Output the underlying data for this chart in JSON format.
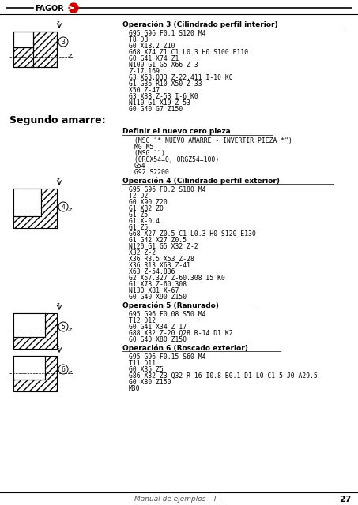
{
  "bg_color": "#ffffff",
  "fagor_text": "FAGOR",
  "fagor_color": "#cc0000",
  "footer_text": "Manual de ejemplos - T -",
  "footer_page": "27",
  "title_op3": "Operación 3 (Cilindrado perfil interior)",
  "code_op3": [
    "G95 G96 F0.1 S120 M4",
    "T8 D8",
    "G0 X18.2 Z10",
    "G68 X74 Z1 C1 L0.3 H0 S100 E110",
    "G0 G41 X74 Z1",
    "N100 G1 G5 X66 Z-3",
    "Z-17.169",
    "G3 X63.033 Z-22.411 I-10 K0",
    "G1 G36 R10 X50 Z-33",
    "X50 Z-47",
    "G3 X38 Z-53 I-6 K0",
    "N110 G1 X19 Z-53",
    "G0 G40 G7 Z150"
  ],
  "segundo_amarre": "Segundo amarre:",
  "title_nuevo_cero": "Definir el nuevo cero pieza",
  "code_nuevo_cero": [
    "(MSG \"* NUEVO AMARRE - INVERTIR PIEZA *\")",
    "M0 M5",
    "(MSG \"\")",
    "(ORGX54=0, ORGZ54=100)",
    "G54",
    "G92 S2200"
  ],
  "title_op4": "Operación 4 (Cilindrado perfil exterior)",
  "code_op4": [
    "G95 G96 F0.2 S180 M4",
    "T2 D2",
    "G0 X90 Z20",
    "G1 X82 Z0",
    "G1 Z5",
    "G1 X-0.4",
    "G1 Z5",
    "G68 X27 Z0.5 C1 L0.3 H0 S120 E130",
    "G1 G42 X27 Z0.5",
    "N120 G1 G5 X32 Z-2",
    "X32 Z-2",
    "X36 R3.5 X53 Z-28",
    "X36 R13 X63 Z-41",
    "X63 Z-54.836",
    "G2 X57.327 Z-60.308 I5 K0",
    "G1 X78 Z-60.308",
    "N130 X81 X-67",
    "G0 G40 X90 Z150"
  ],
  "title_op5": "Operación 5 (Ranurado)",
  "code_op5": [
    "G95 G96 F0.08 S50 M4",
    "T12 D12",
    "G0 G41 X34 Z-17",
    "G88 X32 Z-20 Q28 R-14 D1 K2",
    "G0 G40 X80 Z150"
  ],
  "title_op6": "Operación 6 (Roscado exterior)",
  "code_op6": [
    "G95 G96 F0.15 S60 M4",
    "T11 D11",
    "G0 X35 Z5",
    "G86 X32 Z3 Q32 R-16 I0.8 B0.1 D1 L0 C1.5 J0 A29.5",
    "G0 X80 Z150",
    "M30"
  ],
  "text_color": "#000000",
  "code_color": "#000000"
}
